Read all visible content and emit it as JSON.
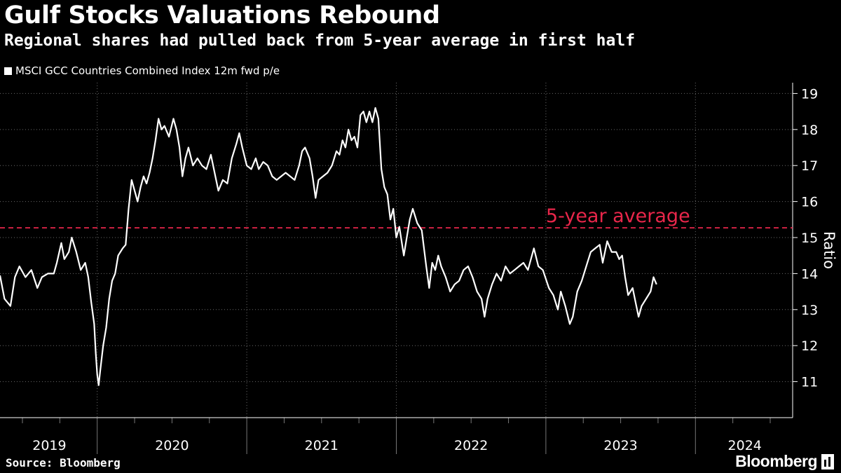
{
  "header": {
    "title": "Gulf Stocks Valuations Rebound",
    "subtitle": "Regional shares had pulled back from 5-year average in first half"
  },
  "footer": {
    "source": "Source: Bloomberg",
    "brand": "Bloomberg"
  },
  "colors": {
    "background": "#000000",
    "line": "#ffffff",
    "average": "#e8264a",
    "grid": "#6a6a6a"
  },
  "chart_data": {
    "type": "line",
    "title": "Gulf Stocks Valuations Rebound",
    "subtitle": "Regional shares had pulled back from 5-year average in first half",
    "ylabel": "Ratio",
    "xlabel": "",
    "ylim": [
      10,
      19.3
    ],
    "xlim": [
      2019.35,
      2024.65
    ],
    "yticks": [
      11,
      12,
      13,
      14,
      15,
      16,
      17,
      18,
      19
    ],
    "year_ticks": [
      2019,
      2020,
      2021,
      2022,
      2023,
      2024,
      2025
    ],
    "year_labels": [
      {
        "label": "2019",
        "x": 2019.68
      },
      {
        "label": "2020",
        "x": 2020.5
      },
      {
        "label": "2021",
        "x": 2021.5
      },
      {
        "label": "2022",
        "x": 2022.5
      },
      {
        "label": "2023",
        "x": 2023.5
      },
      {
        "label": "2024",
        "x": 2024.33
      }
    ],
    "month_ticks": [
      2019.5,
      2019.75,
      2020.25,
      2020.5,
      2020.75,
      2021.25,
      2021.5,
      2021.75,
      2022.25,
      2022.5,
      2022.75,
      2023.25,
      2023.5,
      2023.75,
      2024.25,
      2024.5
    ],
    "grid": true,
    "legend": [
      "MSCI GCC Countries Combined Index 12m fwd p/e"
    ],
    "annotation": {
      "text": "5-year average",
      "value": 15.27,
      "label_x": 2023.0
    },
    "series": [
      {
        "name": "MSCI GCC Countries Combined Index 12m fwd p/e",
        "points": [
          [
            2019.35,
            13.95
          ],
          [
            2019.38,
            13.3
          ],
          [
            2019.42,
            13.1
          ],
          [
            2019.45,
            13.9
          ],
          [
            2019.48,
            14.2
          ],
          [
            2019.52,
            13.9
          ],
          [
            2019.56,
            14.1
          ],
          [
            2019.6,
            13.6
          ],
          [
            2019.63,
            13.9
          ],
          [
            2019.67,
            14.0
          ],
          [
            2019.71,
            14.0
          ],
          [
            2019.73,
            14.3
          ],
          [
            2019.76,
            14.85
          ],
          [
            2019.78,
            14.4
          ],
          [
            2019.81,
            14.6
          ],
          [
            2019.83,
            15.0
          ],
          [
            2019.86,
            14.6
          ],
          [
            2019.89,
            14.1
          ],
          [
            2019.92,
            14.3
          ],
          [
            2019.94,
            13.9
          ],
          [
            2019.96,
            13.2
          ],
          [
            2019.98,
            12.6
          ],
          [
            2019.99,
            11.8
          ],
          [
            2020.0,
            11.2
          ],
          [
            2020.01,
            10.9
          ],
          [
            2020.02,
            11.3
          ],
          [
            2020.04,
            12.0
          ],
          [
            2020.06,
            12.5
          ],
          [
            2020.08,
            13.3
          ],
          [
            2020.1,
            13.8
          ],
          [
            2020.12,
            14.0
          ],
          [
            2020.14,
            14.5
          ],
          [
            2020.17,
            14.7
          ],
          [
            2020.19,
            14.8
          ],
          [
            2020.21,
            15.8
          ],
          [
            2020.23,
            16.6
          ],
          [
            2020.25,
            16.3
          ],
          [
            2020.27,
            16.0
          ],
          [
            2020.29,
            16.4
          ],
          [
            2020.31,
            16.7
          ],
          [
            2020.33,
            16.5
          ],
          [
            2020.35,
            16.8
          ],
          [
            2020.37,
            17.2
          ],
          [
            2020.39,
            17.7
          ],
          [
            2020.41,
            18.3
          ],
          [
            2020.43,
            18.0
          ],
          [
            2020.45,
            18.1
          ],
          [
            2020.48,
            17.8
          ],
          [
            2020.51,
            18.3
          ],
          [
            2020.53,
            18.0
          ],
          [
            2020.55,
            17.5
          ],
          [
            2020.57,
            16.7
          ],
          [
            2020.59,
            17.2
          ],
          [
            2020.61,
            17.5
          ],
          [
            2020.64,
            17.0
          ],
          [
            2020.67,
            17.2
          ],
          [
            2020.7,
            17.0
          ],
          [
            2020.73,
            16.9
          ],
          [
            2020.76,
            17.3
          ],
          [
            2020.79,
            16.7
          ],
          [
            2020.81,
            16.3
          ],
          [
            2020.84,
            16.6
          ],
          [
            2020.87,
            16.5
          ],
          [
            2020.9,
            17.2
          ],
          [
            2020.93,
            17.6
          ],
          [
            2020.95,
            17.9
          ],
          [
            2020.97,
            17.5
          ],
          [
            2021.0,
            17.0
          ],
          [
            2021.03,
            16.9
          ],
          [
            2021.06,
            17.2
          ],
          [
            2021.08,
            16.9
          ],
          [
            2021.11,
            17.1
          ],
          [
            2021.14,
            17.0
          ],
          [
            2021.17,
            16.7
          ],
          [
            2021.2,
            16.6
          ],
          [
            2021.23,
            16.7
          ],
          [
            2021.26,
            16.8
          ],
          [
            2021.29,
            16.7
          ],
          [
            2021.32,
            16.6
          ],
          [
            2021.35,
            17.0
          ],
          [
            2021.37,
            17.4
          ],
          [
            2021.39,
            17.5
          ],
          [
            2021.42,
            17.2
          ],
          [
            2021.44,
            16.7
          ],
          [
            2021.46,
            16.1
          ],
          [
            2021.48,
            16.6
          ],
          [
            2021.51,
            16.7
          ],
          [
            2021.54,
            16.8
          ],
          [
            2021.57,
            17.0
          ],
          [
            2021.6,
            17.4
          ],
          [
            2021.62,
            17.3
          ],
          [
            2021.64,
            17.7
          ],
          [
            2021.66,
            17.5
          ],
          [
            2021.68,
            18.0
          ],
          [
            2021.7,
            17.7
          ],
          [
            2021.72,
            17.8
          ],
          [
            2021.74,
            17.5
          ],
          [
            2021.76,
            18.4
          ],
          [
            2021.78,
            18.5
          ],
          [
            2021.8,
            18.2
          ],
          [
            2021.82,
            18.5
          ],
          [
            2021.84,
            18.2
          ],
          [
            2021.86,
            18.6
          ],
          [
            2021.88,
            18.3
          ],
          [
            2021.9,
            16.9
          ],
          [
            2021.92,
            16.4
          ],
          [
            2021.94,
            16.2
          ],
          [
            2021.96,
            15.5
          ],
          [
            2021.98,
            15.8
          ],
          [
            2022.0,
            15.0
          ],
          [
            2022.02,
            15.3
          ],
          [
            2022.05,
            14.5
          ],
          [
            2022.07,
            15.0
          ],
          [
            2022.09,
            15.5
          ],
          [
            2022.11,
            15.8
          ],
          [
            2022.14,
            15.4
          ],
          [
            2022.17,
            15.2
          ],
          [
            2022.2,
            14.2
          ],
          [
            2022.22,
            13.6
          ],
          [
            2022.24,
            14.3
          ],
          [
            2022.26,
            14.1
          ],
          [
            2022.28,
            14.5
          ],
          [
            2022.3,
            14.2
          ],
          [
            2022.33,
            13.9
          ],
          [
            2022.36,
            13.5
          ],
          [
            2022.39,
            13.7
          ],
          [
            2022.42,
            13.8
          ],
          [
            2022.45,
            14.1
          ],
          [
            2022.48,
            14.2
          ],
          [
            2022.51,
            13.9
          ],
          [
            2022.54,
            13.5
          ],
          [
            2022.57,
            13.3
          ],
          [
            2022.59,
            12.8
          ],
          [
            2022.61,
            13.3
          ],
          [
            2022.64,
            13.7
          ],
          [
            2022.67,
            14.0
          ],
          [
            2022.7,
            13.8
          ],
          [
            2022.73,
            14.2
          ],
          [
            2022.76,
            14.0
          ],
          [
            2022.79,
            14.1
          ],
          [
            2022.82,
            14.2
          ],
          [
            2022.85,
            14.3
          ],
          [
            2022.88,
            14.1
          ],
          [
            2022.92,
            14.7
          ],
          [
            2022.95,
            14.2
          ],
          [
            2022.98,
            14.1
          ],
          [
            2023.02,
            13.6
          ],
          [
            2023.05,
            13.4
          ],
          [
            2023.08,
            13.0
          ],
          [
            2023.1,
            13.5
          ],
          [
            2023.13,
            13.1
          ],
          [
            2023.16,
            12.6
          ],
          [
            2023.18,
            12.8
          ],
          [
            2023.21,
            13.5
          ],
          [
            2023.24,
            13.8
          ],
          [
            2023.27,
            14.2
          ],
          [
            2023.3,
            14.6
          ],
          [
            2023.33,
            14.7
          ],
          [
            2023.36,
            14.8
          ],
          [
            2023.38,
            14.3
          ],
          [
            2023.41,
            14.9
          ],
          [
            2023.44,
            14.6
          ],
          [
            2023.47,
            14.6
          ],
          [
            2023.49,
            14.4
          ],
          [
            2023.51,
            14.5
          ],
          [
            2023.53,
            13.9
          ],
          [
            2023.55,
            13.4
          ],
          [
            2023.58,
            13.6
          ],
          [
            2023.6,
            13.2
          ],
          [
            2023.62,
            12.8
          ],
          [
            2023.64,
            13.1
          ],
          [
            2023.67,
            13.3
          ],
          [
            2023.7,
            13.5
          ],
          [
            2023.72,
            13.9
          ],
          [
            2023.74,
            13.7
          ]
        ]
      }
    ]
  }
}
